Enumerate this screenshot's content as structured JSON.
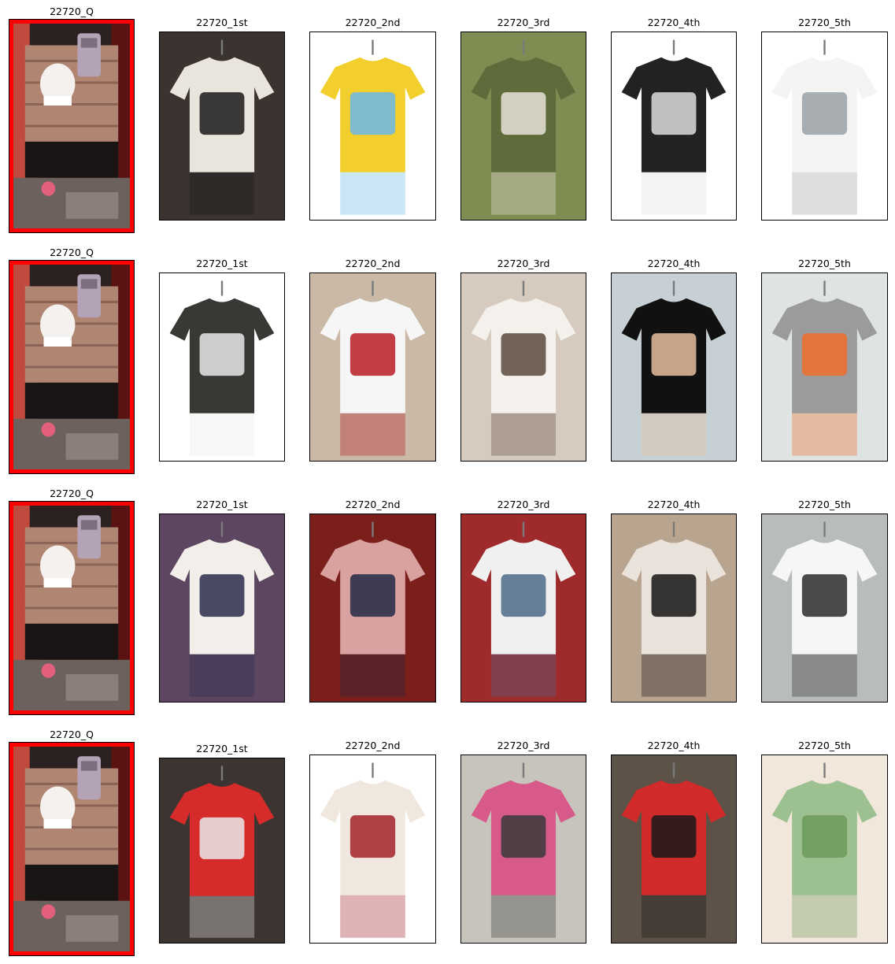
{
  "colors": {
    "query_border": "#ff0000"
  },
  "rows": [
    {
      "query": {
        "label": "22720_Q",
        "icon": "photo-icon"
      },
      "results": [
        {
          "label": "22720_1st",
          "icon": "photo-icon",
          "palette": [
            "#3b3330",
            "#e9e4dc",
            "#1a1a1a"
          ]
        },
        {
          "label": "22720_2nd",
          "icon": "photo-icon",
          "palette": [
            "#ffffff",
            "#f3cf2e",
            "#6ab7e8"
          ]
        },
        {
          "label": "22720_3rd",
          "icon": "photo-icon",
          "palette": [
            "#7f8d52",
            "#5e6b3a",
            "#e7e2da"
          ]
        },
        {
          "label": "22720_4th",
          "icon": "photo-icon",
          "palette": [
            "#ffffff",
            "#222222",
            "#dcdcdc"
          ]
        },
        {
          "label": "22720_5th",
          "icon": "photo-icon",
          "palette": [
            "#ffffff",
            "#f4f4f4",
            "#9aa0a4"
          ]
        }
      ]
    },
    {
      "query": {
        "label": "22720_Q",
        "icon": "photo-icon"
      },
      "results": [
        {
          "label": "22720_1st",
          "icon": "photo-icon",
          "palette": [
            "#ffffff",
            "#3a3835",
            "#e7e7e7"
          ]
        },
        {
          "label": "22720_2nd",
          "icon": "photo-icon",
          "palette": [
            "#c9b9a6",
            "#f6f6f6",
            "#b81c24"
          ]
        },
        {
          "label": "22720_3rd",
          "icon": "photo-icon",
          "palette": [
            "#d7cbbf",
            "#f4f1ec",
            "#5b4a3f"
          ]
        },
        {
          "label": "22720_4th",
          "icon": "photo-icon",
          "palette": [
            "#c7d1d5",
            "#111111",
            "#e7bd9e"
          ]
        },
        {
          "label": "22720_5th",
          "icon": "photo-icon",
          "palette": [
            "#dfe3e2",
            "#9b9b9b",
            "#f06d2b"
          ]
        }
      ]
    },
    {
      "query": {
        "label": "22720_Q",
        "icon": "photo-icon"
      },
      "results": [
        {
          "label": "22720_1st",
          "icon": "photo-icon",
          "palette": [
            "#5c4660",
            "#f2efea",
            "#2b2c4c"
          ]
        },
        {
          "label": "22720_2nd",
          "icon": "photo-icon",
          "palette": [
            "#7a1f1a",
            "#d9a1a0",
            "#222a44"
          ]
        },
        {
          "label": "22720_3rd",
          "icon": "photo-icon",
          "palette": [
            "#9e2a2b",
            "#f0f0f0",
            "#4d6b8a"
          ]
        },
        {
          "label": "22720_4th",
          "icon": "photo-icon",
          "palette": [
            "#b8a48f",
            "#e9e3dc",
            "#151515"
          ]
        },
        {
          "label": "22720_5th",
          "icon": "photo-icon",
          "palette": [
            "#b9bcbd",
            "#f6f6f6",
            "#2b2b2b"
          ]
        }
      ]
    },
    {
      "query": {
        "label": "22720_Q",
        "icon": "photo-icon"
      },
      "results": [
        {
          "label": "22720_1st",
          "icon": "photo-icon",
          "palette": [
            "#3c3430",
            "#d62b2b",
            "#e9e9e9"
          ]
        },
        {
          "label": "22720_2nd",
          "icon": "photo-icon",
          "palette": [
            "#ffffff",
            "#f0e8df",
            "#a3232b"
          ]
        },
        {
          "label": "22720_3rd",
          "icon": "photo-icon",
          "palette": [
            "#c7c4bc",
            "#d75a8a",
            "#3a3a3a"
          ]
        },
        {
          "label": "22720_4th",
          "icon": "photo-icon",
          "palette": [
            "#5d5248",
            "#d12a2a",
            "#1a1a1a"
          ]
        },
        {
          "label": "22720_5th",
          "icon": "photo-icon",
          "palette": [
            "#f1e7db",
            "#9cc090",
            "#6d9a5c"
          ]
        }
      ]
    }
  ]
}
